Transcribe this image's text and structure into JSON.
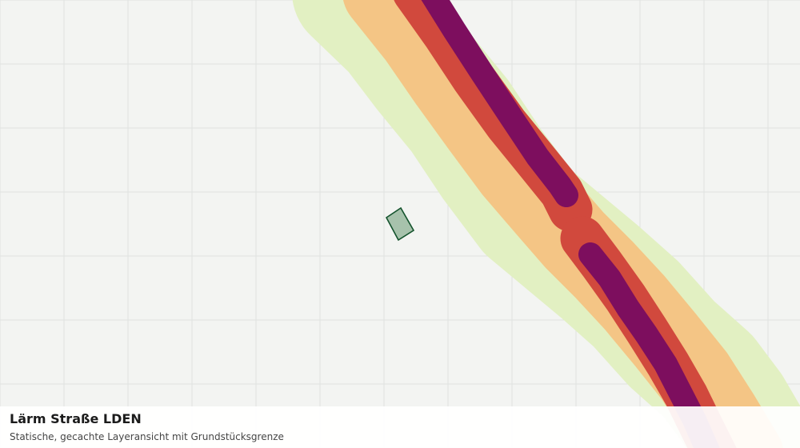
{
  "layer": {
    "title": "Lärm Straße LDEN",
    "subtitle": "Statische, gecachte Layeransicht mit Grundstücksgrenze"
  },
  "map": {
    "background_color": "#f3f4f2",
    "grid_color": "#dfe1df",
    "noise_band_colors": [
      "#e2f0c2",
      "#f4c585",
      "#d1493d",
      "#7d0e5e"
    ],
    "parcel_fill": "#a7c2ac",
    "parcel_stroke": "#14532d"
  }
}
